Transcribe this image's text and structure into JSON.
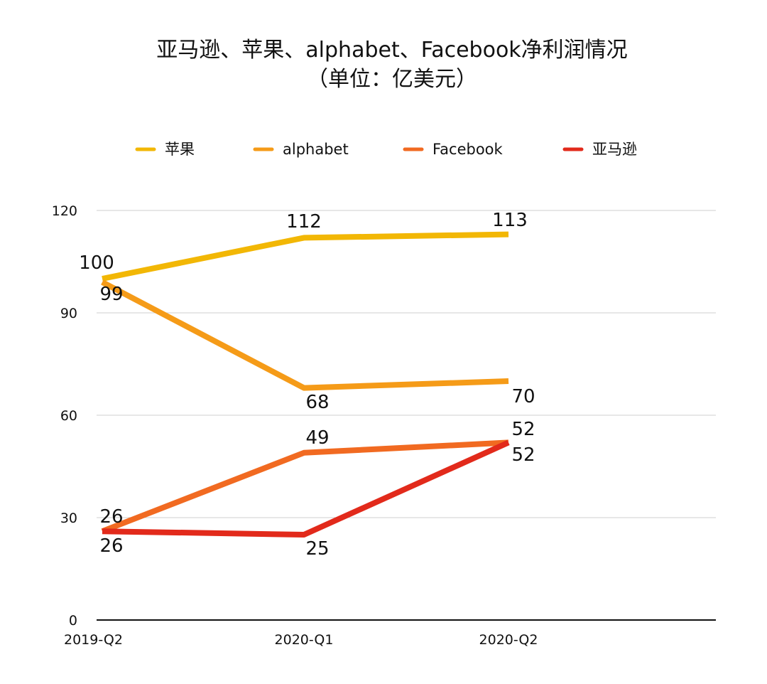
{
  "chart_data": {
    "type": "line",
    "title": "亚马逊、苹果、alphabet、Facebook净利润情况",
    "subtitle": "（单位：亿美元）",
    "categories": [
      "2019-Q2",
      "2020-Q1",
      "2020-Q2"
    ],
    "ylim": [
      0,
      120
    ],
    "yticks": [
      0,
      30,
      60,
      90,
      120
    ],
    "grid": true,
    "legend_position": "top",
    "series": [
      {
        "name": "苹果",
        "values": [
          100,
          112,
          113
        ],
        "color": "#F2B705"
      },
      {
        "name": "alphabet",
        "values": [
          99,
          68,
          70
        ],
        "color": "#F59B18"
      },
      {
        "name": "Facebook",
        "values": [
          26,
          49,
          52
        ],
        "color": "#F16A21"
      },
      {
        "name": "亚马逊",
        "values": [
          26,
          25,
          52
        ],
        "color": "#E22A1B"
      }
    ]
  }
}
